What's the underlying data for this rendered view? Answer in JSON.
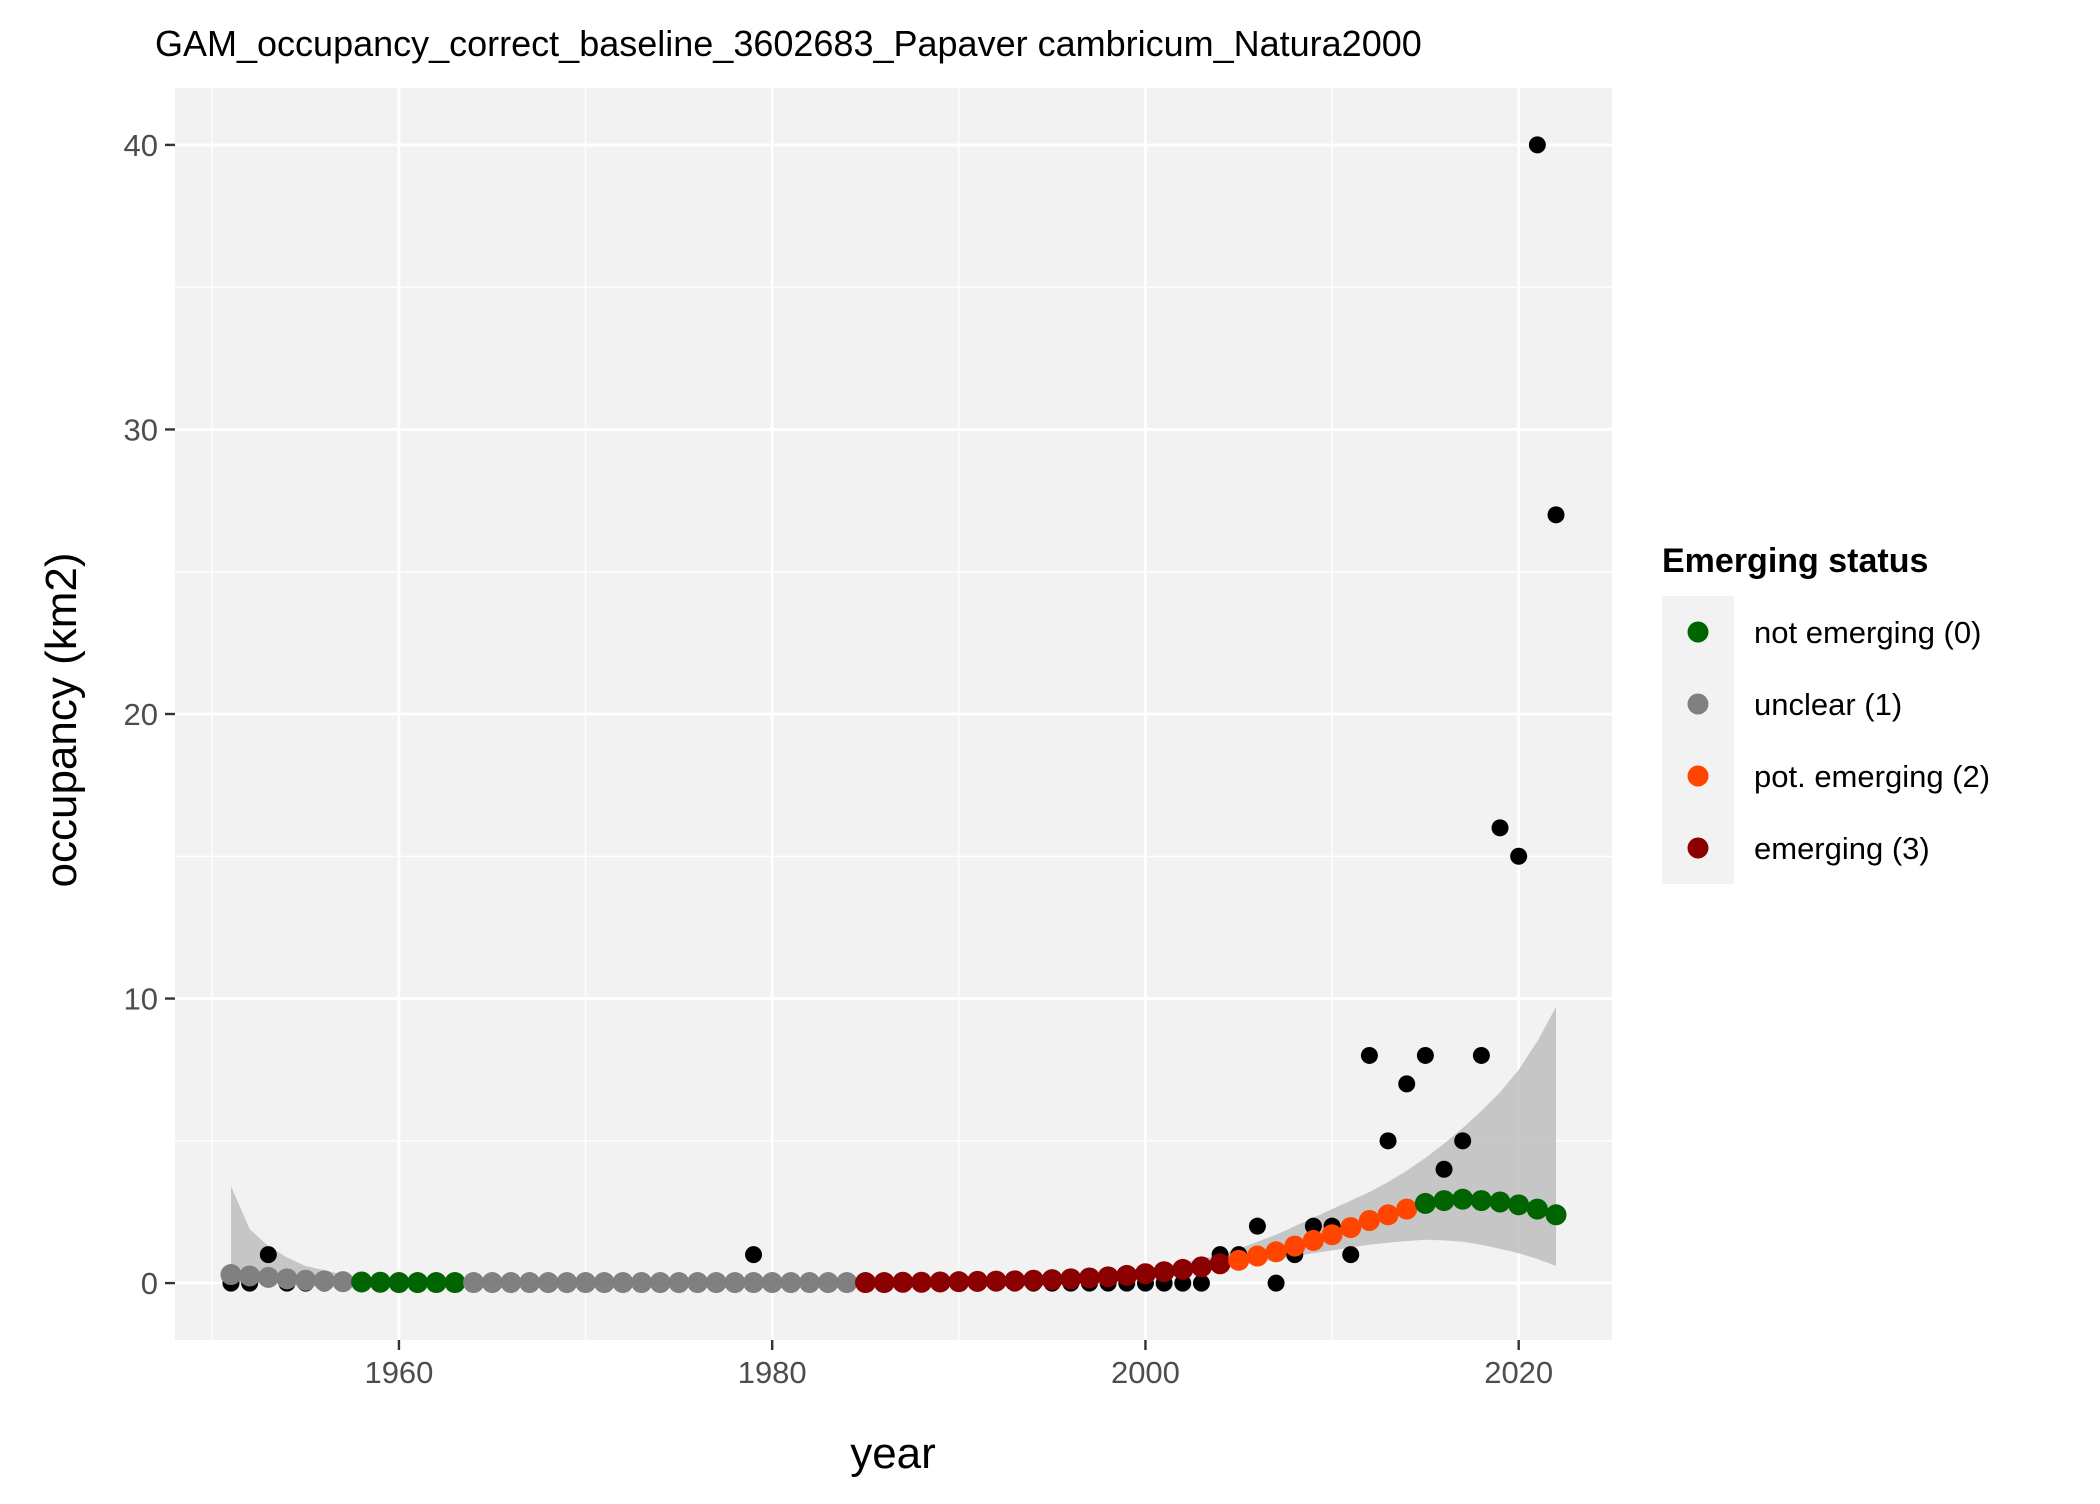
{
  "chart_data": {
    "type": "scatter",
    "title": "GAM_occupancy_correct_baseline_3602683_Papaver cambricum_Natura2000",
    "xlabel": "year",
    "ylabel": "occupancy (km2)",
    "xlim": [
      1948,
      2025
    ],
    "ylim": [
      -2,
      42
    ],
    "x_ticks": [
      1960,
      1980,
      2000,
      2020
    ],
    "y_ticks": [
      0,
      10,
      20,
      30,
      40
    ],
    "grid": true,
    "legend": {
      "title": "Emerging status",
      "placement": "right",
      "entries": [
        {
          "label": "not emerging (0)",
          "color": "#006400"
        },
        {
          "label": "unclear (1)",
          "color": "#808080"
        },
        {
          "label": "pot. emerging (2)",
          "color": "#FF4500"
        },
        {
          "label": "emerging (3)",
          "color": "#8B0000"
        }
      ]
    },
    "colors": {
      "panel_bg": "#F2F2F2",
      "grid_major": "#FFFFFF",
      "grid_minor": "#FAFAFA",
      "ribbon": "#BEBEBE",
      "observed": "#000000",
      "legend_bg": "#F2F2F2"
    },
    "observed": {
      "x": [
        1951,
        1952,
        1953,
        1954,
        1955,
        1956,
        1957,
        1958,
        1959,
        1960,
        1961,
        1962,
        1963,
        1964,
        1965,
        1966,
        1967,
        1968,
        1969,
        1970,
        1971,
        1972,
        1973,
        1974,
        1975,
        1976,
        1977,
        1978,
        1979,
        1980,
        1981,
        1982,
        1983,
        1984,
        1985,
        1986,
        1987,
        1988,
        1989,
        1990,
        1991,
        1992,
        1993,
        1994,
        1995,
        1996,
        1997,
        1998,
        1999,
        2000,
        2001,
        2002,
        2003,
        2004,
        2005,
        2006,
        2007,
        2008,
        2009,
        2010,
        2011,
        2012,
        2013,
        2014,
        2015,
        2016,
        2017,
        2018,
        2019,
        2020,
        2021,
        2022
      ],
      "y": [
        0,
        0,
        1,
        0,
        0,
        0,
        0,
        0,
        0,
        0,
        0,
        0,
        0,
        0,
        0,
        0,
        0,
        0,
        0,
        0,
        0,
        0,
        0,
        0,
        0,
        0,
        0,
        0,
        1,
        0,
        0,
        0,
        0,
        0,
        0,
        0,
        0,
        0,
        0,
        0,
        0,
        0,
        0,
        0,
        0,
        0,
        0,
        0,
        0,
        0,
        0,
        0,
        0,
        1,
        1,
        2,
        0,
        1,
        2,
        2,
        1,
        8,
        5,
        7,
        8,
        4,
        5,
        8,
        16,
        15,
        40,
        27
      ]
    },
    "fit": {
      "x": [
        1951,
        1952,
        1953,
        1954,
        1955,
        1956,
        1957,
        1958,
        1959,
        1960,
        1961,
        1962,
        1963,
        1964,
        1965,
        1966,
        1967,
        1968,
        1969,
        1970,
        1971,
        1972,
        1973,
        1974,
        1975,
        1976,
        1977,
        1978,
        1979,
        1980,
        1981,
        1982,
        1983,
        1984,
        1985,
        1986,
        1987,
        1988,
        1989,
        1990,
        1991,
        1992,
        1993,
        1994,
        1995,
        1996,
        1997,
        1998,
        1999,
        2000,
        2001,
        2002,
        2003,
        2004,
        2005,
        2006,
        2007,
        2008,
        2009,
        2010,
        2011,
        2012,
        2013,
        2014,
        2015,
        2016,
        2017,
        2018,
        2019,
        2020,
        2021,
        2022
      ],
      "y": [
        0.3,
        0.25,
        0.2,
        0.15,
        0.1,
        0.08,
        0.05,
        0.04,
        0.03,
        0.02,
        0.02,
        0.02,
        0.02,
        0.02,
        0.02,
        0.02,
        0.02,
        0.02,
        0.02,
        0.02,
        0.02,
        0.02,
        0.02,
        0.02,
        0.02,
        0.02,
        0.02,
        0.02,
        0.02,
        0.02,
        0.02,
        0.02,
        0.02,
        0.02,
        0.02,
        0.02,
        0.03,
        0.03,
        0.04,
        0.05,
        0.06,
        0.07,
        0.08,
        0.1,
        0.12,
        0.15,
        0.18,
        0.22,
        0.27,
        0.33,
        0.4,
        0.48,
        0.57,
        0.68,
        0.8,
        0.95,
        1.1,
        1.3,
        1.5,
        1.7,
        1.95,
        2.2,
        2.4,
        2.6,
        2.8,
        2.9,
        2.95,
        2.9,
        2.85,
        2.75,
        2.6,
        2.4
      ],
      "lower": [
        0.0,
        0.0,
        0.0,
        0.0,
        0.0,
        0.0,
        0.0,
        0.0,
        0.0,
        0.0,
        0.0,
        0.0,
        0.0,
        0.0,
        0.0,
        0.0,
        0.0,
        0.0,
        0.0,
        0.0,
        0.0,
        0.0,
        0.0,
        0.0,
        0.0,
        0.0,
        0.0,
        0.0,
        0.0,
        0.0,
        0.0,
        0.0,
        0.0,
        0.0,
        0.0,
        0.0,
        0.0,
        0.0,
        0.0,
        0.0,
        0.0,
        0.0,
        0.0,
        0.0,
        0.0,
        0.0,
        0.0,
        0.1,
        0.15,
        0.2,
        0.28,
        0.35,
        0.43,
        0.52,
        0.62,
        0.72,
        0.84,
        0.95,
        1.05,
        1.15,
        1.25,
        1.35,
        1.42,
        1.48,
        1.52,
        1.5,
        1.45,
        1.35,
        1.2,
        1.05,
        0.85,
        0.6
      ],
      "upper": [
        3.4,
        1.9,
        1.3,
        0.9,
        0.6,
        0.45,
        0.3,
        0.22,
        0.15,
        0.12,
        0.1,
        0.1,
        0.1,
        0.1,
        0.1,
        0.1,
        0.1,
        0.1,
        0.1,
        0.1,
        0.1,
        0.1,
        0.1,
        0.1,
        0.1,
        0.1,
        0.1,
        0.1,
        0.1,
        0.1,
        0.1,
        0.1,
        0.1,
        0.1,
        0.1,
        0.1,
        0.1,
        0.1,
        0.1,
        0.12,
        0.14,
        0.16,
        0.18,
        0.2,
        0.22,
        0.25,
        0.3,
        0.35,
        0.42,
        0.5,
        0.6,
        0.72,
        0.85,
        1.0,
        1.2,
        1.45,
        1.7,
        2.0,
        2.3,
        2.6,
        2.9,
        3.2,
        3.55,
        3.95,
        4.4,
        4.9,
        5.45,
        6.05,
        6.7,
        7.5,
        8.5,
        9.7
      ],
      "status": [
        1,
        1,
        1,
        1,
        1,
        1,
        1,
        0,
        0,
        0,
        0,
        0,
        0,
        1,
        1,
        1,
        1,
        1,
        1,
        1,
        1,
        1,
        1,
        1,
        1,
        1,
        1,
        1,
        1,
        1,
        1,
        1,
        1,
        1,
        3,
        3,
        3,
        3,
        3,
        3,
        3,
        3,
        3,
        3,
        3,
        3,
        3,
        3,
        3,
        3,
        3,
        3,
        3,
        3,
        2,
        2,
        2,
        2,
        2,
        2,
        2,
        2,
        2,
        2,
        0,
        0,
        0,
        0,
        0,
        0,
        0,
        0
      ]
    }
  }
}
